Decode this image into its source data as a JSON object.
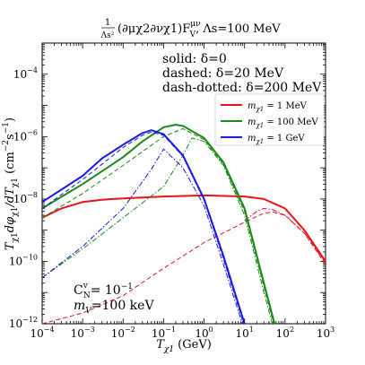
{
  "chart_data": {
    "type": "line",
    "title": "1/Λs² (∂μχ2∂νχ1)F_V^μν, Λs=100 MeV",
    "title_parts": {
      "frac_num": "1",
      "frac_den": "Λs²",
      "operator": "(∂μχ2∂νχ1)F",
      "operator_sup": "μν",
      "operator_sub": "V",
      "tail": ", Λs=100 MeV"
    },
    "xlabel": "Tχ1 (GeV)",
    "xlabel_parts": {
      "main": "T",
      "sub": "χ1",
      "unit": " (GeV)"
    },
    "ylabel": "Tχ1 dφχ1/dTχ1 (cm⁻²s⁻¹)",
    "ylabel_parts": {
      "t": "T",
      "sub1": "χ1",
      "mid": "dφ",
      "sub2": "χ1",
      "mid2": "/dT",
      "sub3": "χ1",
      "unit": " (cm",
      "exp1": "−2",
      "s": "s",
      "exp2": "−1",
      "close": ")"
    },
    "x_scale": "log",
    "y_scale": "log",
    "xlim": [
      0.0001,
      1000
    ],
    "ylim": [
      1e-12,
      0.001
    ],
    "x_ticks": [
      {
        "value": 0.0001,
        "base": "10",
        "exp": "−4"
      },
      {
        "value": 0.001,
        "base": "10",
        "exp": "−3"
      },
      {
        "value": 0.01,
        "base": "10",
        "exp": "−2"
      },
      {
        "value": 0.1,
        "base": "10",
        "exp": "−1"
      },
      {
        "value": 1,
        "base": "10",
        "exp": "0"
      },
      {
        "value": 10,
        "base": "10",
        "exp": "1"
      },
      {
        "value": 100,
        "base": "10",
        "exp": "2"
      },
      {
        "value": 1000,
        "base": "10",
        "exp": "3"
      }
    ],
    "y_ticks": [
      {
        "value": 1e-12,
        "base": "10",
        "exp": "−12"
      },
      {
        "value": 1e-10,
        "base": "10",
        "exp": "−10"
      },
      {
        "value": 1e-08,
        "base": "10",
        "exp": "−8"
      },
      {
        "value": 1e-06,
        "base": "10",
        "exp": "−6"
      },
      {
        "value": 0.0001,
        "base": "10",
        "exp": "−4"
      }
    ],
    "grid": false,
    "legend_position": "top-right",
    "style_notes": [
      "solid: δ=0",
      "dashed: δ=20 MeV",
      "dash-dotted: δ=200 MeV"
    ],
    "annotations": [
      {
        "text": "C_N^v= 10^−1",
        "parts": {
          "c": "C",
          "sub": "N",
          "sup": "v",
          "rest": "= 10",
          "exp": "−1"
        }
      },
      {
        "text": "m_V=100 keV",
        "parts": {
          "m": "m",
          "sub": "V",
          "rest": "=100 keV"
        }
      }
    ],
    "legend": [
      {
        "color": "#e8141c",
        "label_main": "m",
        "label_sub": "χ1",
        "label_rest": " = 1  MeV"
      },
      {
        "color": "#1a8a1a",
        "label_main": "m",
        "label_sub": "χ1",
        "label_rest": " = 100  MeV"
      },
      {
        "color": "#1a1ae6",
        "label_main": "m",
        "label_sub": "χ1",
        "label_rest": " = 1  GeV"
      }
    ],
    "series": [
      {
        "color": "#e8141c",
        "dash": "solid",
        "width": 2,
        "x": [
          0.0001,
          0.0003,
          0.001,
          0.003,
          0.01,
          0.1,
          1,
          10,
          30,
          100,
          300,
          1000
        ],
        "y": [
          2.5e-09,
          5e-09,
          8e-09,
          9.5e-09,
          1.05e-08,
          1.2e-08,
          1.3e-08,
          1.2e-08,
          1e-08,
          5e-09,
          1e-09,
          1e-10
        ]
      },
      {
        "color": "#e8141c",
        "dash": "dashed",
        "width": 1,
        "x": [
          0.0001,
          0.001,
          0.01,
          0.1,
          1,
          10,
          30,
          50,
          100,
          300,
          1000
        ],
        "y": [
          1e-12,
          2.2e-12,
          8e-12,
          6e-11,
          4e-10,
          1.8e-09,
          3.5e-09,
          3.8e-09,
          3e-09,
          8e-10,
          8e-11
        ]
      },
      {
        "color": "#e8141c",
        "dash": "dashdot",
        "width": 1,
        "x": [
          10,
          20,
          30,
          50,
          100,
          300,
          1000
        ],
        "y": [
          2e-09,
          4e-09,
          5e-09,
          4.5e-09,
          3e-09,
          8e-10,
          9e-11
        ]
      },
      {
        "color": "#1a8a1a",
        "dash": "solid",
        "width": 2,
        "x": [
          0.0001,
          0.001,
          0.01,
          0.03,
          0.1,
          0.2,
          0.3,
          1,
          3,
          10,
          30,
          100
        ],
        "y": [
          5e-09,
          3e-08,
          2.2e-07,
          7e-07,
          2e-06,
          2.4e-06,
          2.2e-06,
          9e-07,
          1.5e-07,
          5e-09,
          2e-11,
          5e-14
        ]
      },
      {
        "color": "#1a8a1a",
        "dash": "dashed",
        "width": 1,
        "x": [
          0.0001,
          0.001,
          0.01,
          0.1,
          0.3,
          1,
          3,
          10,
          30,
          100
        ],
        "y": [
          2.5e-09,
          1.5e-08,
          1.2e-07,
          1e-06,
          1.8e-06,
          8e-07,
          1.3e-07,
          4e-09,
          1.5e-11,
          4e-14
        ]
      },
      {
        "color": "#1a8a1a",
        "dash": "dashdot",
        "width": 1,
        "x": [
          0.0001,
          0.001,
          0.01,
          0.1,
          0.3,
          0.5,
          1,
          3,
          10,
          30,
          100
        ],
        "y": [
          3e-11,
          2.5e-10,
          2.5e-09,
          2.5e-08,
          2.5e-07,
          9e-07,
          7e-07,
          1.2e-07,
          3e-09,
          1e-11,
          3e-14
        ]
      },
      {
        "color": "#1a1ae6",
        "dash": "solid",
        "width": 2,
        "x": [
          0.0001,
          0.001,
          0.003,
          0.01,
          0.03,
          0.05,
          0.1,
          0.3,
          1,
          3,
          10
        ],
        "y": [
          8e-09,
          5.5e-08,
          2e-07,
          5.5e-07,
          1.3e-06,
          1.6e-06,
          1.2e-06,
          2.5e-07,
          1e-08,
          1.5e-10,
          1e-12
        ]
      },
      {
        "color": "#1a1ae6",
        "dash": "dashed",
        "width": 1,
        "x": [
          0.0001,
          0.001,
          0.01,
          0.03,
          0.05,
          0.1,
          0.3,
          1,
          3,
          10
        ],
        "y": [
          5e-09,
          4.2e-08,
          4.5e-07,
          1.1e-06,
          1.4e-06,
          1.1e-06,
          2.3e-07,
          9e-09,
          1.2e-10,
          8e-13
        ]
      },
      {
        "color": "#1a1ae6",
        "dash": "dashdot",
        "width": 1,
        "x": [
          0.0001,
          0.001,
          0.01,
          0.05,
          0.1,
          0.3,
          1,
          3,
          10
        ],
        "y": [
          3e-11,
          3e-10,
          5e-09,
          9e-08,
          4e-07,
          1e-07,
          6e-09,
          8e-11,
          6e-13
        ]
      }
    ]
  }
}
